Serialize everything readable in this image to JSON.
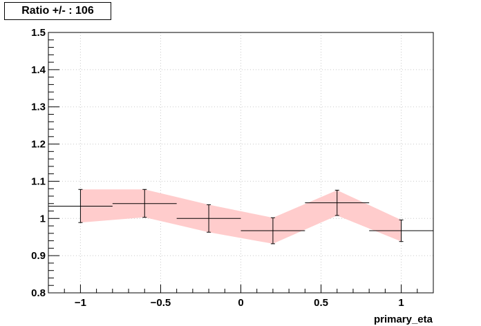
{
  "chart_data": {
    "type": "line",
    "title": "Ratio +/- : 106",
    "xlabel": "primary_eta",
    "ylabel": "",
    "xlim": [
      -1.2,
      1.2
    ],
    "ylim": [
      0.8,
      1.5
    ],
    "grid": true,
    "x_ticks": [
      "−1",
      "−0.5",
      "0",
      "0.5",
      "1"
    ],
    "x_tick_values": [
      -1,
      -0.5,
      0,
      0.5,
      1
    ],
    "y_ticks": [
      "0.8",
      "0.9",
      "1",
      "1.1",
      "1.2",
      "1.3",
      "1.4",
      "1.5"
    ],
    "y_tick_values": [
      0.8,
      0.9,
      1.0,
      1.1,
      1.2,
      1.3,
      1.4,
      1.5
    ],
    "series": [
      {
        "points": [
          {
            "x": -1.0,
            "xlo": -1.2,
            "xhi": -0.8,
            "y": 1.033,
            "ylo": 0.989,
            "yhi": 1.078
          },
          {
            "x": -0.6,
            "xlo": -0.8,
            "xhi": -0.4,
            "y": 1.04,
            "ylo": 1.003,
            "yhi": 1.078
          },
          {
            "x": -0.2,
            "xlo": -0.4,
            "xhi": 0.0,
            "y": 1.0,
            "ylo": 0.963,
            "yhi": 1.037
          },
          {
            "x": 0.2,
            "xlo": 0.0,
            "xhi": 0.4,
            "y": 0.967,
            "ylo": 0.932,
            "yhi": 1.002
          },
          {
            "x": 0.6,
            "xlo": 0.4,
            "xhi": 0.8,
            "y": 1.042,
            "ylo": 1.008,
            "yhi": 1.076
          },
          {
            "x": 1.0,
            "xlo": 0.8,
            "xhi": 1.2,
            "y": 0.967,
            "ylo": 0.938,
            "yhi": 0.996
          }
        ]
      }
    ],
    "band": {
      "x": [
        -1.0,
        -0.6,
        -0.2,
        0.2,
        0.6,
        1.0
      ],
      "lo": [
        0.989,
        1.003,
        0.963,
        0.932,
        1.008,
        0.938
      ],
      "hi": [
        1.078,
        1.078,
        1.037,
        1.002,
        1.076,
        0.996
      ],
      "color": "#ffcccc"
    },
    "colors": {
      "marker": "#000000",
      "grid": "#c8c8c8"
    }
  }
}
